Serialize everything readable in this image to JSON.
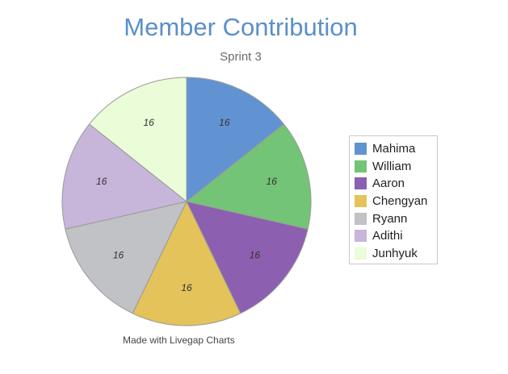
{
  "chart_data": {
    "type": "pie",
    "title": "Member Contribution",
    "subtitle": "Sprint 3",
    "slices": [
      {
        "label": "Mahima",
        "value": 16,
        "color": "#6193d2"
      },
      {
        "label": "William",
        "value": 16,
        "color": "#73c476"
      },
      {
        "label": "Aaron",
        "value": 16,
        "color": "#8c5fb0"
      },
      {
        "label": "Chengyan",
        "value": 16,
        "color": "#e3c35a"
      },
      {
        "label": "Ryann",
        "value": 16,
        "color": "#c0c2c6"
      },
      {
        "label": "Adithi",
        "value": 16,
        "color": "#c7b5da"
      },
      {
        "label": "Junhyuk",
        "value": 16,
        "color": "#eafcd8"
      }
    ],
    "legend_position": "right"
  },
  "footer": "Made with Livegap Charts"
}
